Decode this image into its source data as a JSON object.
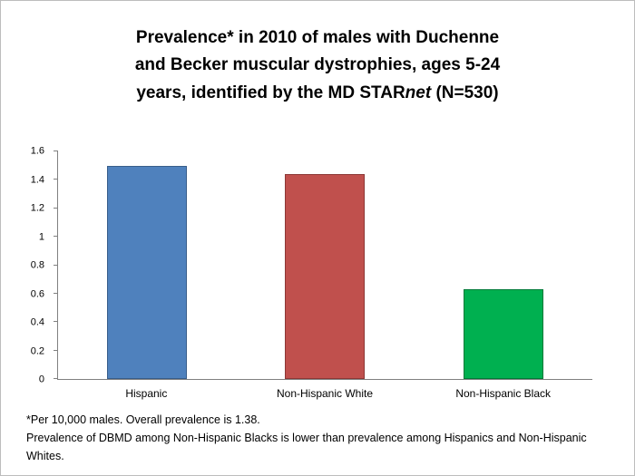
{
  "title": {
    "line1": "Prevalence* in 2010 of males with Duchenne",
    "line2": "and Becker muscular dystrophies, ages 5-24",
    "line3_pre": "years, identified by the MD STAR",
    "line3_italic": "net",
    "line3_post": " (N=530)"
  },
  "chart_data": {
    "type": "bar",
    "title": "Prevalence* in 2010 of males with Duchenne and Becker muscular dystrophies, ages 5-24 years, identified by the MD STARnet (N=530)",
    "categories": [
      "Hispanic",
      "Non-Hispanic White",
      "Non-Hispanic Black"
    ],
    "values": [
      1.5,
      1.44,
      0.63
    ],
    "xlabel": "",
    "ylabel": "",
    "ylim": [
      0,
      1.6
    ],
    "yticks": [
      0,
      0.2,
      0.4,
      0.6,
      0.8,
      1,
      1.2,
      1.4,
      1.6
    ],
    "grid": false,
    "legend": "none",
    "colors": [
      {
        "fill": "#4f81bd",
        "border": "#385d8a"
      },
      {
        "fill": "#c0504d",
        "border": "#8c3836"
      },
      {
        "fill": "#00b050",
        "border": "#007a38"
      }
    ]
  },
  "footnotes": {
    "note1": "*Per 10,000 males. Overall prevalence is 1.38.",
    "note2": "Prevalence of DBMD among Non-Hispanic Blacks is lower than prevalence among Hispanics and Non-Hispanic Whites."
  }
}
